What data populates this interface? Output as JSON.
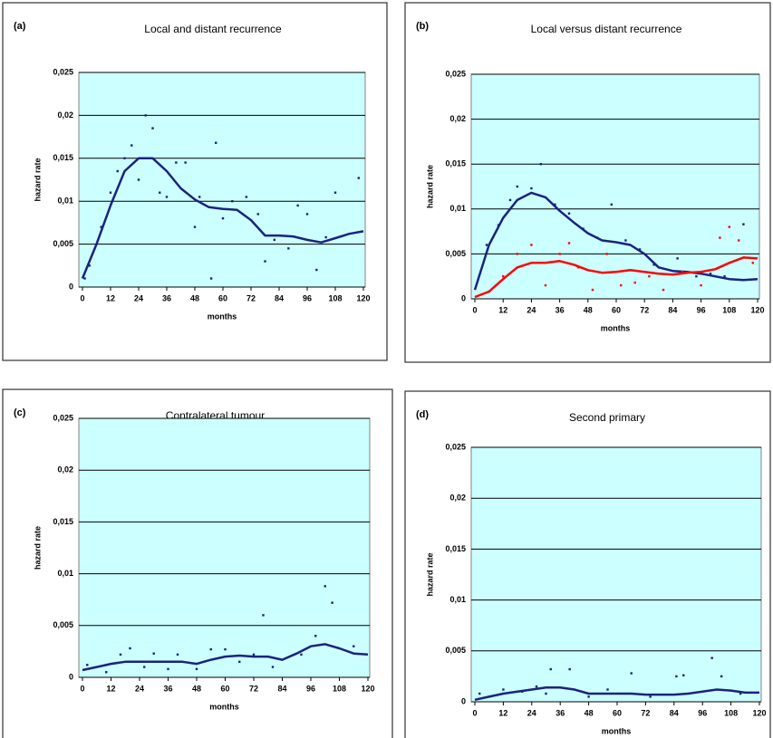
{
  "chart_data": [
    {
      "type": "line",
      "panel": "(a)",
      "title": "Local and distant recurrence",
      "xlabel": "months",
      "ylabel": "hazard rate",
      "xlim": [
        0,
        120
      ],
      "ylim": [
        0,
        0.025
      ],
      "xticks": [
        0,
        12,
        24,
        36,
        48,
        60,
        72,
        84,
        96,
        108,
        120
      ],
      "yticks": [
        0,
        {
          "value": 0.005,
          "label": "0,005"
        },
        {
          "value": 0.01,
          "label": "0,01"
        },
        {
          "value": 0.015,
          "label": "0,015"
        },
        {
          "value": 0.02,
          "label": "0,02"
        },
        {
          "value": 0.025,
          "label": "0,025"
        }
      ],
      "grid": true,
      "background": "#ccffff",
      "series": [
        {
          "mode": "line",
          "color": "#1a237e",
          "x": [
            0,
            6,
            12,
            18,
            24,
            30,
            36,
            42,
            48,
            54,
            60,
            66,
            72,
            78,
            84,
            90,
            96,
            102,
            108,
            114,
            120
          ],
          "values": [
            0.001,
            0.005,
            0.0095,
            0.0135,
            0.015,
            0.015,
            0.0135,
            0.0115,
            0.0102,
            0.0093,
            0.0091,
            0.009,
            0.0078,
            0.006,
            0.006,
            0.0059,
            0.0055,
            0.0052,
            0.0057,
            0.0062,
            0.0065
          ]
        },
        {
          "mode": "points",
          "color": "#1a237e",
          "x": [
            1,
            3,
            8,
            12,
            15,
            18,
            21,
            24,
            27,
            30,
            33,
            36,
            40,
            44,
            48,
            50,
            55,
            57,
            60,
            64,
            70,
            75,
            78,
            82,
            88,
            92,
            96,
            100,
            104,
            108,
            118
          ],
          "values": [
            0.001,
            0.0025,
            0.007,
            0.011,
            0.0135,
            0.015,
            0.0165,
            0.0125,
            0.02,
            0.0185,
            0.011,
            0.0105,
            0.0145,
            0.0145,
            0.007,
            0.0105,
            0.001,
            0.0168,
            0.008,
            0.01,
            0.0105,
            0.0085,
            0.003,
            0.0055,
            0.0045,
            0.0095,
            0.0085,
            0.002,
            0.0058,
            0.011,
            0.0127
          ]
        }
      ]
    },
    {
      "type": "line",
      "panel": "(b)",
      "title": "Local versus distant recurrence",
      "xlabel": "months",
      "ylabel": "hazard rate",
      "xlim": [
        0,
        120
      ],
      "ylim": [
        0,
        0.025
      ],
      "xticks": [
        0,
        12,
        24,
        36,
        48,
        60,
        72,
        84,
        96,
        108,
        120
      ],
      "yticks": [
        0,
        {
          "value": 0.005,
          "label": "0,005"
        },
        {
          "value": 0.01,
          "label": "0,01"
        },
        {
          "value": 0.015,
          "label": "0,015"
        },
        {
          "value": 0.02,
          "label": "0,02"
        },
        {
          "value": 0.025,
          "label": "0,025"
        }
      ],
      "grid": true,
      "background": "#ccffff",
      "series": [
        {
          "mode": "line",
          "color": "#1a237e",
          "x": [
            0,
            6,
            12,
            18,
            24,
            30,
            36,
            42,
            48,
            54,
            60,
            66,
            72,
            78,
            84,
            90,
            96,
            102,
            108,
            114,
            120
          ],
          "values": [
            0.001,
            0.006,
            0.009,
            0.011,
            0.0118,
            0.0113,
            0.0098,
            0.0085,
            0.0073,
            0.0065,
            0.0063,
            0.006,
            0.005,
            0.0035,
            0.0031,
            0.003,
            0.0028,
            0.0025,
            0.0022,
            0.0021,
            0.0022
          ]
        },
        {
          "mode": "line",
          "color": "#ff0000",
          "x": [
            0,
            6,
            12,
            18,
            24,
            30,
            36,
            42,
            48,
            54,
            60,
            66,
            72,
            78,
            84,
            90,
            96,
            102,
            108,
            114,
            120
          ],
          "values": [
            0.0002,
            0.0008,
            0.0022,
            0.0035,
            0.004,
            0.004,
            0.0042,
            0.0038,
            0.0032,
            0.0029,
            0.003,
            0.0032,
            0.003,
            0.0028,
            0.0027,
            0.0029,
            0.003,
            0.0033,
            0.004,
            0.0046,
            0.0045
          ]
        },
        {
          "mode": "points",
          "color": "#1a237e",
          "x": [
            5,
            10,
            15,
            18,
            24,
            28,
            34,
            40,
            46,
            52,
            58,
            64,
            70,
            76,
            86,
            94,
            100,
            106,
            114
          ],
          "values": [
            0.006,
            0.0082,
            0.011,
            0.0125,
            0.0123,
            0.015,
            0.0105,
            0.0095,
            0.0078,
            0.0068,
            0.0105,
            0.0065,
            0.0055,
            0.0038,
            0.0045,
            0.0025,
            0.0028,
            0.0025,
            0.0083
          ]
        },
        {
          "mode": "points",
          "color": "#ff0000",
          "x": [
            6,
            12,
            18,
            24,
            30,
            36,
            40,
            44,
            50,
            56,
            62,
            68,
            74,
            80,
            88,
            96,
            104,
            108,
            112,
            118
          ],
          "values": [
            0.0008,
            0.0025,
            0.005,
            0.006,
            0.0015,
            0.005,
            0.0062,
            0.0035,
            0.001,
            0.005,
            0.0015,
            0.0018,
            0.0025,
            0.001,
            0.003,
            0.0015,
            0.0068,
            0.008,
            0.0065,
            0.004
          ]
        }
      ]
    },
    {
      "type": "line",
      "panel": "(c)",
      "title": "Contralateral tumour",
      "xlabel": "months",
      "ylabel": "hazard rate",
      "xlim": [
        0,
        120
      ],
      "ylim": [
        0,
        0.025
      ],
      "xticks": [
        0,
        12,
        24,
        36,
        48,
        60,
        72,
        84,
        96,
        108,
        120
      ],
      "yticks": [
        0,
        {
          "value": 0.005,
          "label": "0,005"
        },
        {
          "value": 0.01,
          "label": "0,01"
        },
        {
          "value": 0.015,
          "label": "0,015"
        },
        {
          "value": 0.02,
          "label": "0,02"
        },
        {
          "value": 0.025,
          "label": "0,025"
        }
      ],
      "grid": true,
      "background": "#ccffff",
      "series": [
        {
          "mode": "line",
          "color": "#1a237e",
          "x": [
            0,
            6,
            12,
            18,
            24,
            30,
            36,
            42,
            48,
            54,
            60,
            66,
            72,
            78,
            84,
            90,
            96,
            102,
            108,
            114,
            120
          ],
          "values": [
            0.0007,
            0.001,
            0.0013,
            0.0015,
            0.0015,
            0.0015,
            0.0015,
            0.0015,
            0.0013,
            0.0017,
            0.002,
            0.0021,
            0.002,
            0.002,
            0.0017,
            0.0023,
            0.003,
            0.0032,
            0.0028,
            0.0023,
            0.0022
          ]
        },
        {
          "mode": "points",
          "color": "#1a237e",
          "x": [
            2,
            10,
            16,
            20,
            26,
            30,
            36,
            40,
            48,
            54,
            60,
            66,
            72,
            76,
            80,
            92,
            98,
            102,
            105,
            114
          ],
          "values": [
            0.0012,
            0.0005,
            0.0022,
            0.0028,
            0.001,
            0.0023,
            0.0008,
            0.0022,
            0.0008,
            0.0027,
            0.0027,
            0.0015,
            0.0022,
            0.006,
            0.001,
            0.0022,
            0.004,
            0.0088,
            0.0072,
            0.003
          ]
        }
      ]
    },
    {
      "type": "line",
      "panel": "(d)",
      "title": "Second primary",
      "xlabel": "months",
      "ylabel": "hazard rate",
      "xlim": [
        0,
        120
      ],
      "ylim": [
        0,
        0.025
      ],
      "xticks": [
        0,
        12,
        24,
        36,
        48,
        60,
        72,
        84,
        96,
        108,
        120
      ],
      "yticks": [
        0,
        {
          "value": 0.005,
          "label": "0,005"
        },
        {
          "value": 0.01,
          "label": "0,01"
        },
        {
          "value": 0.015,
          "label": "0,015"
        },
        {
          "value": 0.02,
          "label": "0,02"
        },
        {
          "value": 0.025,
          "label": "0,025"
        }
      ],
      "grid": true,
      "background": "#ccffff",
      "series": [
        {
          "mode": "line",
          "color": "#1a237e",
          "x": [
            0,
            6,
            12,
            18,
            24,
            30,
            36,
            42,
            48,
            54,
            60,
            66,
            72,
            78,
            84,
            90,
            96,
            102,
            108,
            114,
            120
          ],
          "values": [
            0.0002,
            0.0005,
            0.0008,
            0.001,
            0.0012,
            0.0014,
            0.0014,
            0.0012,
            0.0008,
            0.0008,
            0.0008,
            0.0008,
            0.0007,
            0.0007,
            0.0007,
            0.0008,
            0.001,
            0.0012,
            0.0011,
            0.0009,
            0.0009
          ]
        },
        {
          "mode": "points",
          "color": "#1a237e",
          "x": [
            2,
            12,
            20,
            26,
            30,
            32,
            40,
            48,
            56,
            66,
            74,
            85,
            88,
            100,
            104,
            112
          ],
          "values": [
            0.0008,
            0.0012,
            0.001,
            0.0015,
            0.0008,
            0.0032,
            0.0032,
            0.0005,
            0.0012,
            0.0028,
            0.0005,
            0.0025,
            0.0026,
            0.0043,
            0.0025,
            0.0008
          ]
        }
      ]
    }
  ]
}
